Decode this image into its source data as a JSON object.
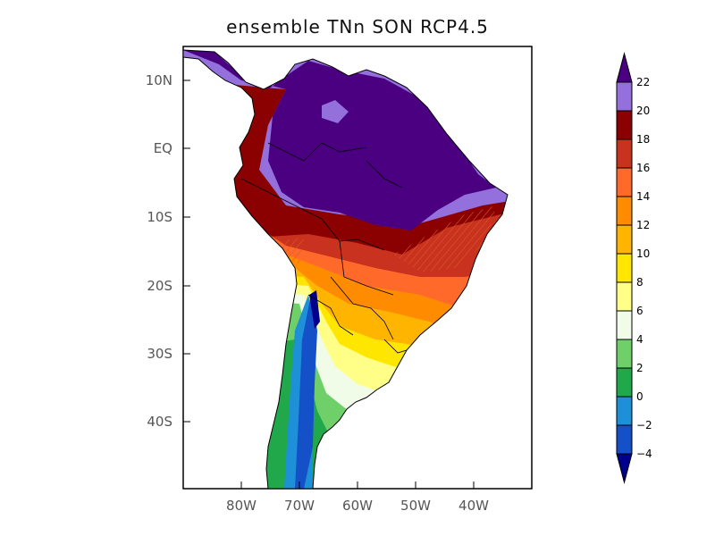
{
  "title": "ensemble TNn SON RCP4.5",
  "lat_labels": [
    "10N",
    "EQ",
    "10S",
    "20S",
    "30S",
    "40S"
  ],
  "lon_labels": [
    "80W",
    "70W",
    "60W",
    "50W",
    "40W"
  ],
  "colorbar": {
    "levels": [
      "22",
      "20",
      "18",
      "16",
      "14",
      "12",
      "10",
      "8",
      "6",
      "4",
      "2",
      "0",
      "−2",
      "−4"
    ],
    "colors_top_to_bottom": [
      "#4b0082",
      "#9370db",
      "#8b0000",
      "#c8321e",
      "#ff6a2a",
      "#ff8c00",
      "#ffb400",
      "#ffe600",
      "#ffff88",
      "#f0fbe8",
      "#6fd06a",
      "#20a84a",
      "#1e90d8",
      "#1450c8",
      "#00008b"
    ]
  }
}
